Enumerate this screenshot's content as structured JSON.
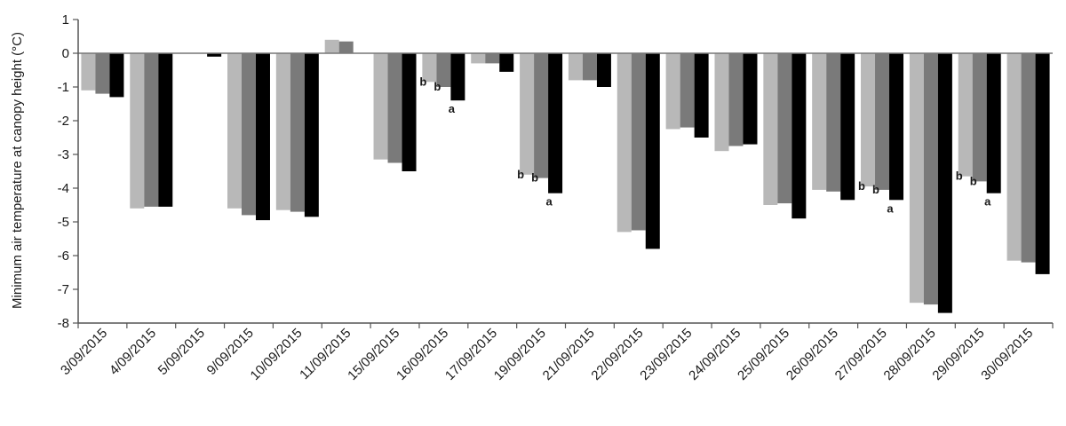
{
  "chart_data": {
    "type": "bar",
    "title": "",
    "xlabel": "",
    "ylabel": "Minimum air temperature at canopy height (°C)",
    "ylim": [
      -8,
      1
    ],
    "yticks": [
      1,
      0,
      -1,
      -2,
      -3,
      -4,
      -5,
      -6,
      -7,
      -8
    ],
    "grid": false,
    "legend": "none",
    "categories": [
      "3/09/2015",
      "4/09/2015",
      "5/09/2015",
      "9/09/2015",
      "10/09/2015",
      "11/09/2015",
      "15/09/2015",
      "16/09/2015",
      "17/09/2015",
      "19/09/2015",
      "21/09/2015",
      "22/09/2015",
      "23/09/2015",
      "24/09/2015",
      "25/09/2015",
      "26/09/2015",
      "27/09/2015",
      "28/09/2015",
      "29/09/2015",
      "30/09/2015"
    ],
    "series": [
      {
        "color": "#b8b8b8",
        "values": [
          -1.1,
          -4.6,
          0.0,
          -4.6,
          -4.65,
          0.4,
          -3.15,
          -0.85,
          -0.3,
          -3.6,
          -0.8,
          -5.3,
          -2.25,
          -2.9,
          -4.5,
          -4.05,
          -3.95,
          -7.4,
          -3.65,
          -6.15
        ]
      },
      {
        "color": "#7a7a7a",
        "values": [
          -1.2,
          -4.55,
          0.0,
          -4.8,
          -4.7,
          0.35,
          -3.25,
          -1.0,
          -0.3,
          -3.7,
          -0.8,
          -5.25,
          -2.2,
          -2.75,
          -4.45,
          -4.1,
          -4.05,
          -7.45,
          -3.8,
          -6.2
        ]
      },
      {
        "color": "#000000",
        "values": [
          -1.3,
          -4.55,
          -0.1,
          -4.95,
          -4.85,
          0.0,
          -3.5,
          -1.4,
          -0.55,
          -4.15,
          -1.0,
          -5.8,
          -2.5,
          -2.7,
          -4.9,
          -4.35,
          -4.35,
          -7.7,
          -4.15,
          -6.55
        ]
      }
    ],
    "annotations": [
      {
        "category": "16/09/2015",
        "letters": [
          "b",
          "b",
          "a"
        ]
      },
      {
        "category": "19/09/2015",
        "letters": [
          "b",
          "b",
          "a"
        ]
      },
      {
        "category": "27/09/2015",
        "letters": [
          "b",
          "b",
          "a"
        ]
      },
      {
        "category": "29/09/2015",
        "letters": [
          "b",
          "b",
          "a"
        ]
      }
    ]
  }
}
